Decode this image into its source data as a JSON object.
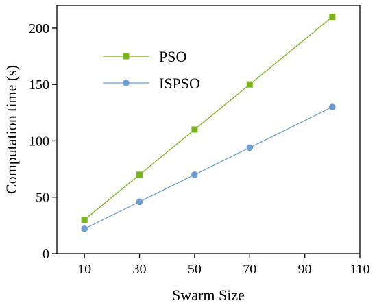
{
  "chart_data": {
    "type": "line",
    "xlabel": "Swarm Size",
    "ylabel": "Computation time (s)",
    "xlim": [
      0,
      110
    ],
    "ylim": [
      0,
      220
    ],
    "xticks": [
      10,
      30,
      50,
      70,
      90,
      110
    ],
    "yticks": [
      0,
      50,
      100,
      150,
      200
    ],
    "grid": false,
    "legend_position": "top-left",
    "series": [
      {
        "name": "PSO",
        "marker": "square",
        "color": "#7ab51d",
        "x": [
          10,
          30,
          50,
          70,
          100
        ],
        "y": [
          30,
          70,
          110,
          150,
          210
        ]
      },
      {
        "name": "ISPSO",
        "marker": "circle",
        "color": "#6d9ed1",
        "x": [
          10,
          30,
          50,
          70,
          100
        ],
        "y": [
          22,
          46,
          70,
          94,
          130
        ]
      }
    ]
  }
}
